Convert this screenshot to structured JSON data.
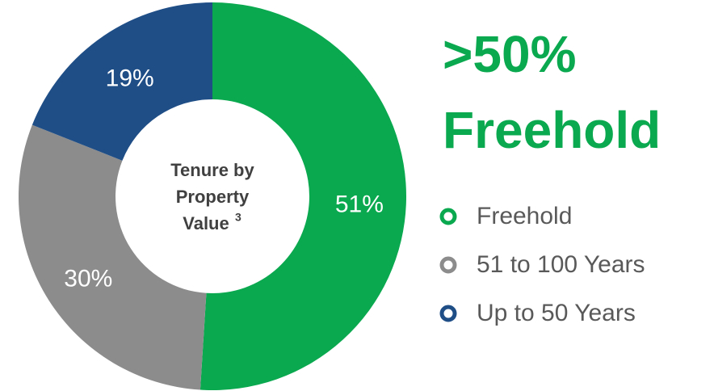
{
  "chart_data": {
    "type": "donut",
    "headline": [
      ">50%",
      "Freehold"
    ],
    "center_label": [
      "Tenure by",
      "Property",
      "Value"
    ],
    "center_label_sup": "3",
    "categories": [
      "Freehold",
      "51 to 100 Years",
      "Up to 50 Years"
    ],
    "values": [
      51,
      30,
      19
    ],
    "value_labels": [
      "51%",
      "30%",
      "19%"
    ],
    "colors": [
      "#0aa84f",
      "#8c8c8c",
      "#1f4e87"
    ],
    "headline_color": "#0aa84f"
  }
}
